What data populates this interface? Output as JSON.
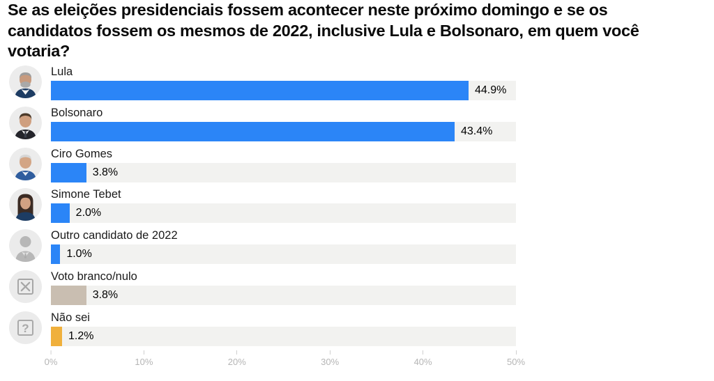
{
  "title": "Se as eleições presidenciais fossem acontecer neste próximo domingo e se os candidatos fossem os mesmos de 2022, inclusive Lula e Bolsonaro, em quem você votaria?",
  "colors": {
    "bar_blue": "#2b85f7",
    "bar_tan": "#c9beb1",
    "bar_yellow": "#f0b03c",
    "track": "#f2f2f0",
    "avatar_circle": "#ececec",
    "axis_text": "#b5b5b5",
    "title_text": "#0a0a0a",
    "label_text": "#1a1a1a"
  },
  "chart_data": {
    "type": "bar",
    "orientation": "horizontal",
    "title": "Se as eleições presidenciais fossem acontecer neste próximo domingo e se os candidatos fossem os mesmos de 2022, inclusive Lula e Bolsonaro, em quem você votaria?",
    "categories": [
      "Lula",
      "Bolsonaro",
      "Ciro Gomes",
      "Simone Tebet",
      "Outro candidato de 2022",
      "Voto branco/nulo",
      "Não sei"
    ],
    "values": [
      44.9,
      43.4,
      3.8,
      2.0,
      1.0,
      3.8,
      1.2
    ],
    "value_labels": [
      "44.9%",
      "43.4%",
      "3.8%",
      "2.0%",
      "1.0%",
      "3.8%",
      "1.2%"
    ],
    "bar_colors": [
      "#2b85f7",
      "#2b85f7",
      "#2b85f7",
      "#2b85f7",
      "#2b85f7",
      "#c9beb1",
      "#f0b03c"
    ],
    "bar_patterns": [
      null,
      null,
      null,
      null,
      null,
      "dots",
      null
    ],
    "avatar_icons": [
      "lula-photo-avatar",
      "bolsonaro-photo-avatar",
      "ciro-gomes-photo-avatar",
      "simone-tebet-photo-avatar",
      "generic-person-icon",
      "x-box-icon",
      "question-box-icon"
    ],
    "xlabel": "",
    "ylabel": "",
    "xlim": [
      0,
      50
    ],
    "x_ticks": [
      "0%",
      "10%",
      "20%",
      "30%",
      "40%",
      "50%"
    ],
    "grid": false,
    "legend": false
  }
}
